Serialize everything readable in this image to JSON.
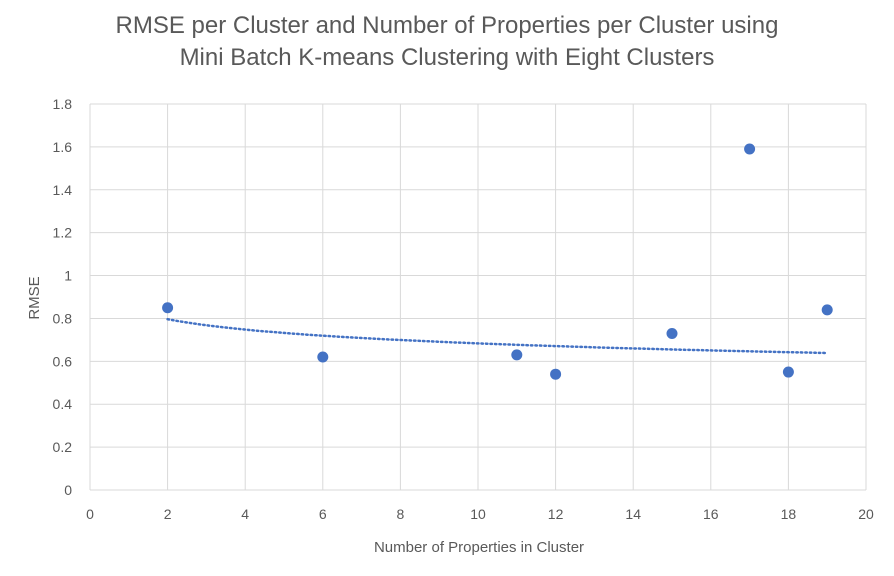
{
  "chart_data": {
    "type": "scatter",
    "title_lines": [
      "RMSE per Cluster and Number of Properties per Cluster using",
      "Mini Batch K-means Clustering with Eight Clusters"
    ],
    "xlabel": "Number of Properties in Cluster",
    "ylabel": "RMSE",
    "xlim": [
      0,
      20
    ],
    "ylim": [
      0,
      1.8
    ],
    "x_ticks": [
      "0",
      "2",
      "4",
      "6",
      "8",
      "10",
      "12",
      "14",
      "16",
      "18",
      "20"
    ],
    "y_ticks": [
      "0",
      "0.2",
      "0.4",
      "0.6",
      "0.8",
      "1",
      "1.2",
      "1.4",
      "1.6",
      "1.8"
    ],
    "grid": true,
    "series": [
      {
        "x": [
          2,
          6,
          11,
          12,
          15,
          17,
          18,
          19
        ],
        "y": [
          0.85,
          0.62,
          0.63,
          0.54,
          0.73,
          1.59,
          0.55,
          0.84
        ]
      }
    ],
    "trendline": {
      "type": "logarithmic",
      "style": "dotted",
      "x_range": [
        2,
        19
      ],
      "intercept": 0.845,
      "slope": -0.07
    },
    "colors": {
      "marker": "#4472c4",
      "trendline": "#4472c4",
      "grid": "#d9d9d9",
      "text": "#595959"
    }
  }
}
